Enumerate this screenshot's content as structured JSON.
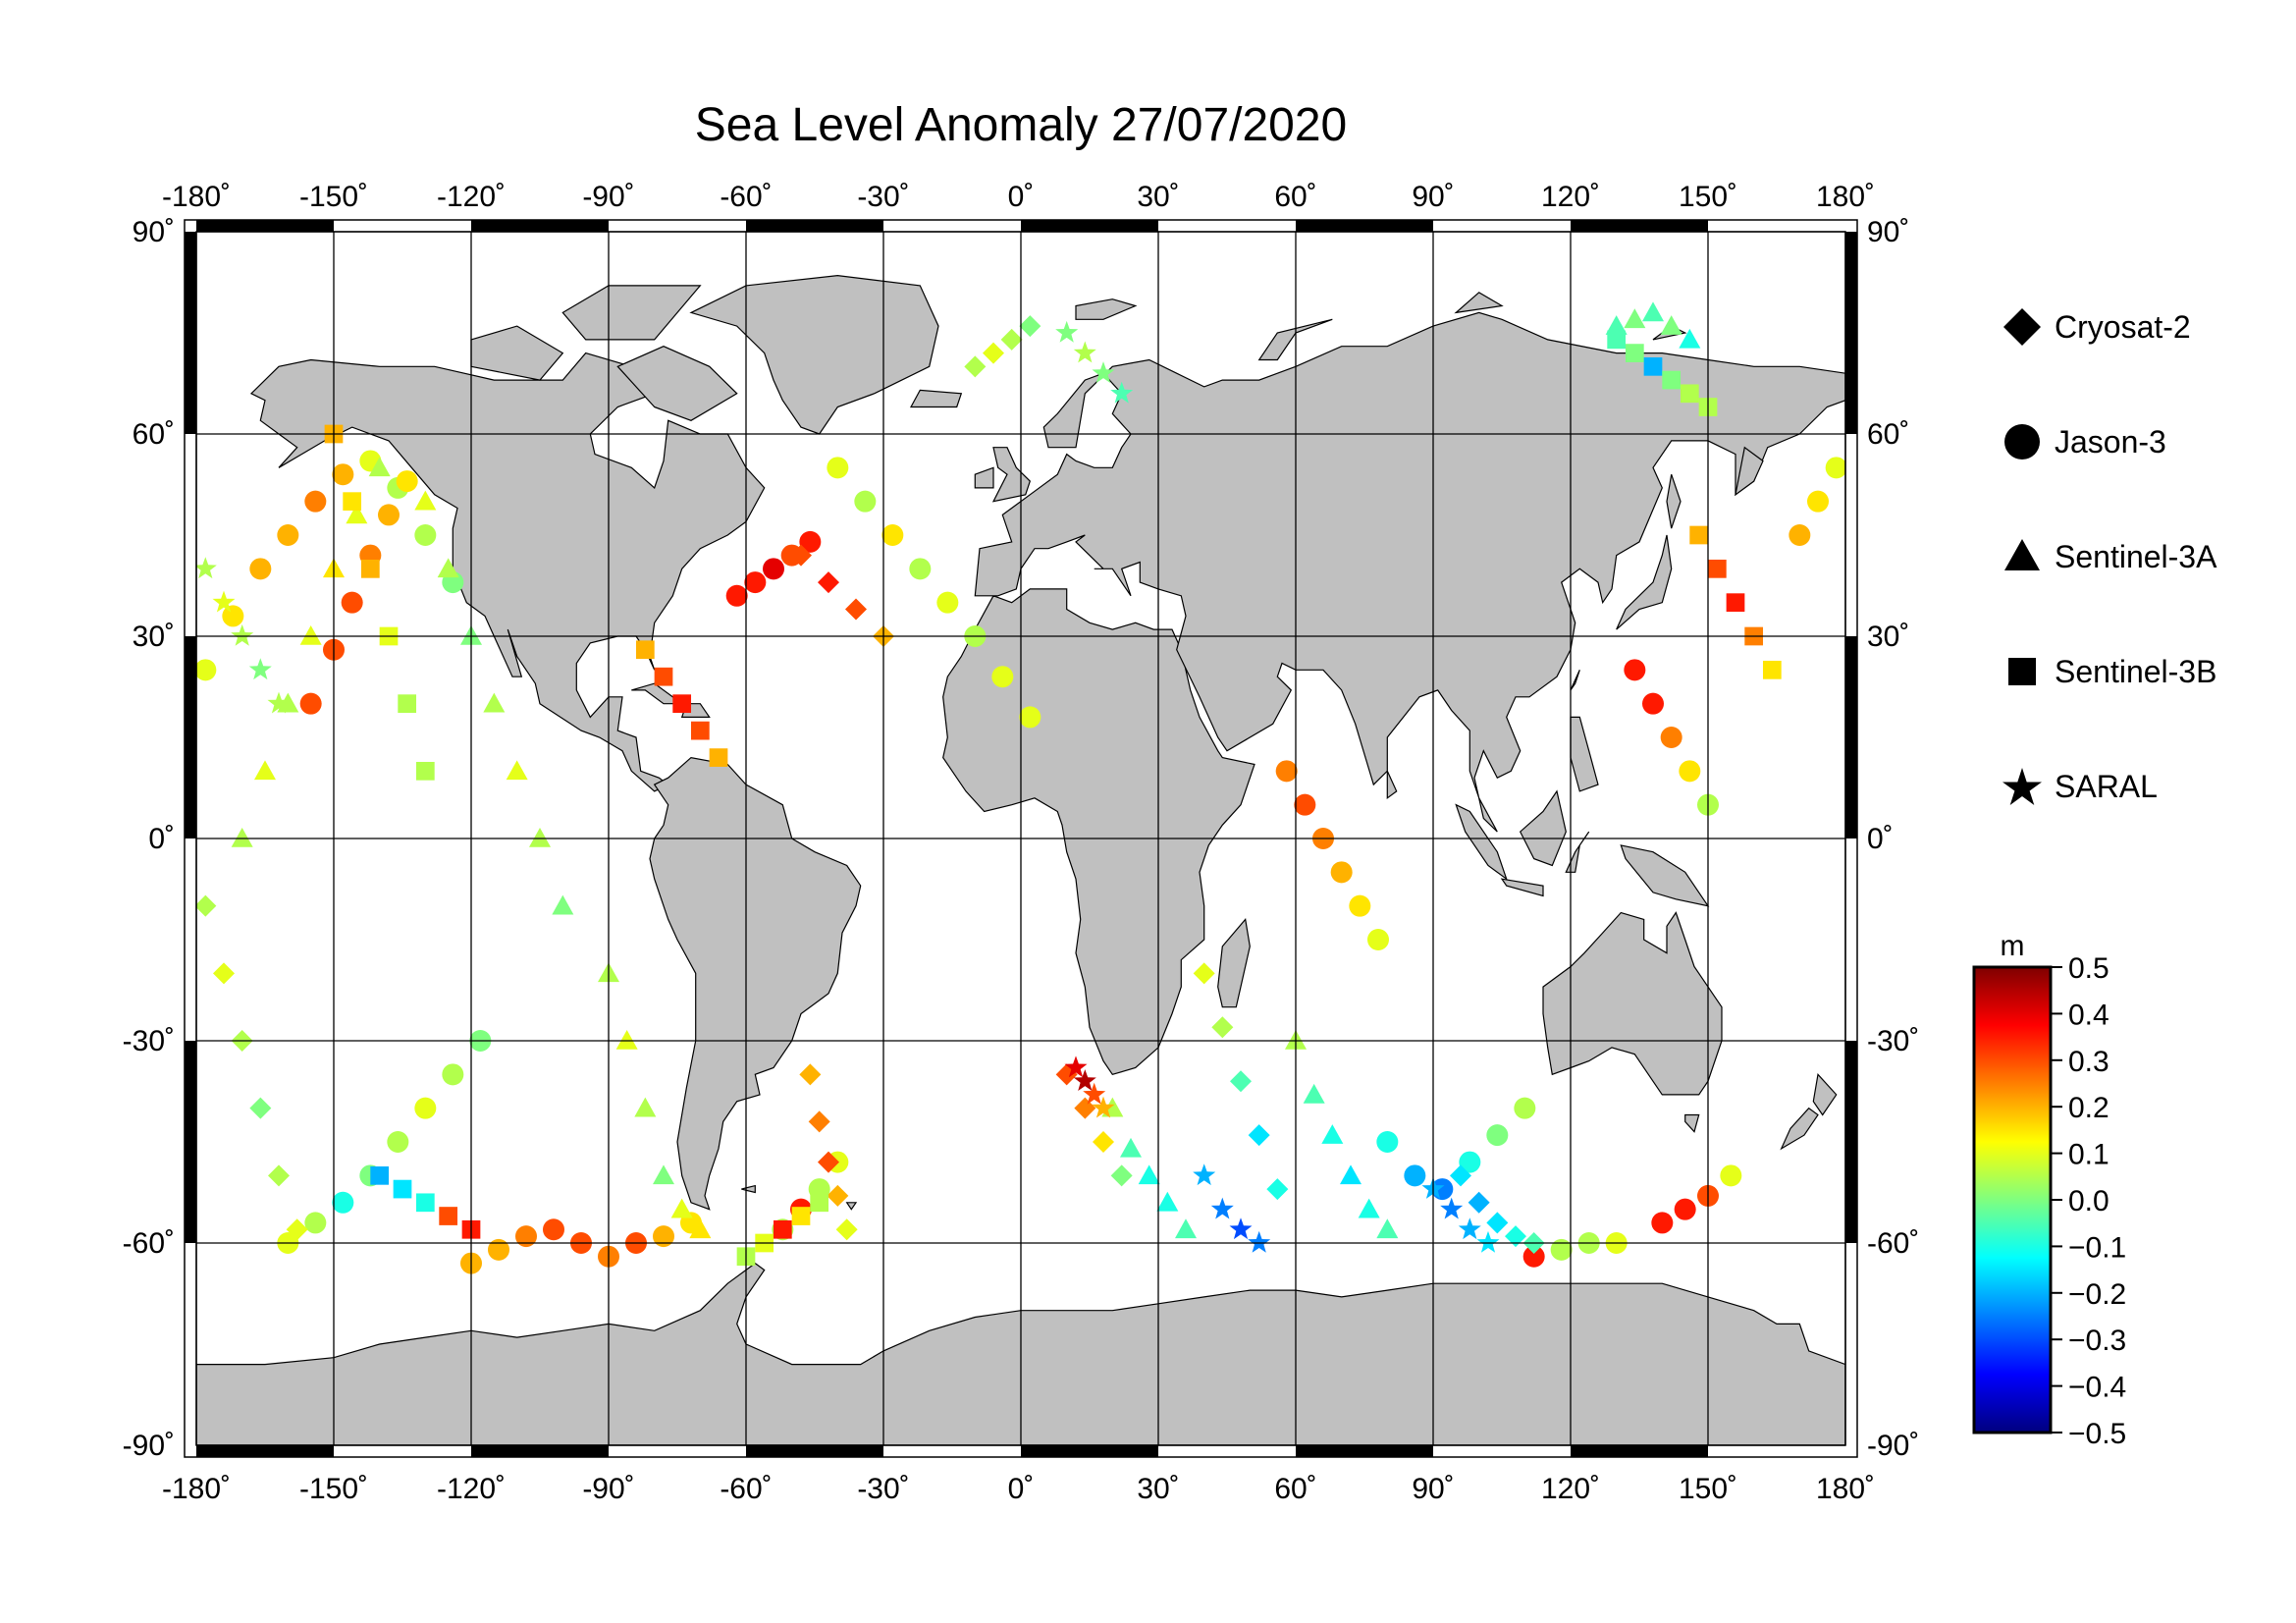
{
  "title": "Sea Level Anomaly 27/07/2020",
  "map": {
    "lon_range": [
      -180,
      180
    ],
    "lat_range": [
      -90,
      90
    ],
    "lon_ticks": [
      "-180˚",
      "-150˚",
      "-120˚",
      "-90˚",
      "-60˚",
      "-30˚",
      "0˚",
      "30˚",
      "60˚",
      "90˚",
      "120˚",
      "150˚",
      "180˚"
    ],
    "lat_ticks_left": [
      "90˚",
      "60˚",
      "30˚",
      "0˚",
      "-30˚",
      "-60˚",
      "-90˚"
    ],
    "lat_ticks_right": [
      "90˚",
      "60˚",
      "30˚",
      "0˚",
      "-30˚",
      "-60˚",
      "-90˚"
    ],
    "grid": true,
    "ocean_color": "#ffffff",
    "land_color": "#c0c0c0"
  },
  "legend": {
    "items": [
      {
        "label": "Cryosat-2",
        "marker": "diamond"
      },
      {
        "label": "Jason-3",
        "marker": "circle"
      },
      {
        "label": "Sentinel-3A",
        "marker": "triangle"
      },
      {
        "label": "Sentinel-3B",
        "marker": "square"
      },
      {
        "label": "SARAL",
        "marker": "star"
      }
    ]
  },
  "colorbar": {
    "unit": "m",
    "range": [
      -0.5,
      0.5
    ],
    "tick_labels": [
      "0.5",
      "0.4",
      "0.3",
      "0.2",
      "0.1",
      "0.0",
      "−0.1",
      "−0.2",
      "−0.3",
      "−0.4",
      "−0.5"
    ],
    "colors": [
      "#00007f",
      "#0000ff",
      "#007fff",
      "#00ffff",
      "#7fff7f",
      "#ffff00",
      "#ff7f00",
      "#ff0000",
      "#7f0000"
    ]
  },
  "chart_data": {
    "type": "scatter",
    "title": "Sea Level Anomaly 27/07/2020",
    "xlabel": "",
    "ylabel": "",
    "xlim": [
      -180,
      180
    ],
    "ylim": [
      -90,
      90
    ],
    "color_scale": {
      "unit": "m",
      "min": -0.5,
      "max": 0.5
    },
    "series": [
      {
        "name": "Jason-3",
        "marker": "circle",
        "tracks": [
          {
            "lon": [
              -178,
              -172,
              -166,
              -160,
              -154,
              -148,
              -142,
              -136,
              -130,
              -124
            ],
            "lat": [
              25,
              33,
              40,
              45,
              50,
              54,
              56,
              52,
              45,
              38
            ],
            "sla": [
              0.1,
              0.15,
              0.2,
              0.2,
              0.25,
              0.2,
              0.1,
              0.05,
              0.05,
              0.0
            ]
          },
          {
            "lon": [
              -155,
              -150,
              -146,
              -142,
              -138,
              -134
            ],
            "lat": [
              20,
              28,
              35,
              42,
              48,
              53
            ],
            "sla": [
              0.3,
              0.3,
              0.3,
              0.25,
              0.2,
              0.15
            ]
          },
          {
            "lon": [
              -160,
              -154,
              -148,
              -142,
              -136,
              -130,
              -124,
              -118
            ],
            "lat": [
              -60,
              -57,
              -54,
              -50,
              -45,
              -40,
              -35,
              -30
            ],
            "sla": [
              0.1,
              0.05,
              -0.1,
              0.0,
              0.05,
              0.1,
              0.05,
              0.0
            ]
          },
          {
            "lon": [
              -120,
              -114,
              -108,
              -102,
              -96,
              -90,
              -84,
              -78,
              -72
            ],
            "lat": [
              -63,
              -61,
              -59,
              -58,
              -60,
              -62,
              -60,
              -59,
              -57
            ],
            "sla": [
              0.2,
              0.2,
              0.25,
              0.3,
              0.3,
              0.25,
              0.3,
              0.2,
              0.15
            ]
          },
          {
            "lon": [
              -52,
              -48,
              -44,
              -40
            ],
            "lat": [
              -58,
              -55,
              -52,
              -48
            ],
            "sla": [
              0.05,
              0.35,
              0.05,
              0.1
            ]
          },
          {
            "lon": [
              -62,
              -58,
              -54,
              -50,
              -46
            ],
            "lat": [
              36,
              38,
              40,
              42,
              44
            ],
            "sla": [
              0.35,
              0.35,
              0.4,
              0.3,
              0.35
            ]
          },
          {
            "lon": [
              -40,
              -34,
              -28,
              -22,
              -16,
              -10,
              -4,
              2
            ],
            "lat": [
              55,
              50,
              45,
              40,
              35,
              30,
              24,
              18
            ],
            "sla": [
              0.1,
              0.05,
              0.15,
              0.05,
              0.1,
              0.05,
              0.1,
              0.1
            ]
          },
          {
            "lon": [
              58,
              62,
              66,
              70,
              74,
              78
            ],
            "lat": [
              10,
              5,
              0,
              -5,
              -10,
              -15
            ],
            "sla": [
              0.25,
              0.3,
              0.25,
              0.2,
              0.15,
              0.1
            ]
          },
          {
            "lon": [
              80,
              86,
              92,
              98,
              104,
              110
            ],
            "lat": [
              -45,
              -50,
              -52,
              -48,
              -44,
              -40
            ],
            "sla": [
              -0.1,
              -0.2,
              -0.25,
              -0.1,
              0.0,
              0.05
            ]
          },
          {
            "lon": [
              134,
              138,
              142,
              146,
              150
            ],
            "lat": [
              25,
              20,
              15,
              10,
              5
            ],
            "sla": [
              0.35,
              0.35,
              0.25,
              0.15,
              0.05
            ]
          },
          {
            "lon": [
              140,
              145,
              150,
              155
            ],
            "lat": [
              -57,
              -55,
              -53,
              -50
            ],
            "sla": [
              0.35,
              0.35,
              0.3,
              0.1
            ]
          },
          {
            "lon": [
              112,
              118,
              124,
              130
            ],
            "lat": [
              -62,
              -61,
              -60,
              -60
            ],
            "sla": [
              0.35,
              0.05,
              0.05,
              0.1
            ]
          },
          {
            "lon": [
              170,
              174,
              178
            ],
            "lat": [
              45,
              50,
              55
            ],
            "sla": [
              0.2,
              0.15,
              0.1
            ]
          }
        ]
      },
      {
        "name": "Cryosat-2",
        "marker": "diamond",
        "tracks": [
          {
            "lon": [
              -178,
              -174,
              -170,
              -166,
              -162,
              -158
            ],
            "lat": [
              -10,
              -20,
              -30,
              -40,
              -50,
              -58
            ],
            "sla": [
              0.05,
              0.1,
              0.05,
              0.0,
              0.05,
              0.1
            ]
          },
          {
            "lon": [
              -46,
              -44,
              -42,
              -40,
              -38
            ],
            "lat": [
              -35,
              -42,
              -48,
              -53,
              -58
            ],
            "sla": [
              0.2,
              0.25,
              0.3,
              0.2,
              0.1
            ]
          },
          {
            "lon": [
              -48,
              -42,
              -36,
              -30
            ],
            "lat": [
              42,
              38,
              34,
              30
            ],
            "sla": [
              0.3,
              0.35,
              0.3,
              0.2
            ]
          },
          {
            "lon": [
              40,
              44,
              48,
              52,
              56
            ],
            "lat": [
              -20,
              -28,
              -36,
              -44,
              -52
            ],
            "sla": [
              0.1,
              0.05,
              -0.05,
              -0.15,
              -0.1
            ]
          },
          {
            "lon": [
              96,
              100,
              104,
              108,
              112
            ],
            "lat": [
              -50,
              -54,
              -57,
              -59,
              -60
            ],
            "sla": [
              -0.15,
              -0.2,
              -0.15,
              -0.1,
              -0.05
            ]
          },
          {
            "lon": [
              10,
              14,
              18,
              22
            ],
            "lat": [
              -35,
              -40,
              -45,
              -50
            ],
            "sla": [
              0.3,
              0.25,
              0.15,
              0.0
            ]
          },
          {
            "lon": [
              -10,
              -6,
              -2,
              2
            ],
            "lat": [
              70,
              72,
              74,
              76
            ],
            "sla": [
              0.05,
              0.1,
              0.05,
              0.0
            ]
          }
        ]
      },
      {
        "name": "Sentinel-3A",
        "marker": "triangle",
        "tracks": [
          {
            "lon": [
              -170,
              -165,
              -160,
              -155,
              -150,
              -145,
              -140
            ],
            "lat": [
              0,
              10,
              20,
              30,
              40,
              48,
              55
            ],
            "sla": [
              0.05,
              0.1,
              0.05,
              0.1,
              0.15,
              0.1,
              0.05
            ]
          },
          {
            "lon": [
              -130,
              -125,
              -120,
              -115,
              -110,
              -105,
              -100
            ],
            "lat": [
              50,
              40,
              30,
              20,
              10,
              0,
              -10
            ],
            "sla": [
              0.1,
              0.05,
              0.0,
              0.05,
              0.1,
              0.05,
              0.0
            ]
          },
          {
            "lon": [
              -90,
              -86,
              -82,
              -78,
              -74,
              -70
            ],
            "lat": [
              -20,
              -30,
              -40,
              -50,
              -55,
              -58
            ],
            "sla": [
              0.05,
              0.1,
              0.05,
              0.0,
              0.1,
              0.15
            ]
          },
          {
            "lon": [
              130,
              134,
              138,
              142,
              146
            ],
            "lat": [
              76,
              77,
              78,
              76,
              74
            ],
            "sla": [
              -0.05,
              0.0,
              -0.05,
              0.0,
              -0.1
            ]
          },
          {
            "lon": [
              60,
              64,
              68,
              72,
              76,
              80
            ],
            "lat": [
              -30,
              -38,
              -44,
              -50,
              -55,
              -58
            ],
            "sla": [
              0.05,
              -0.05,
              -0.1,
              -0.15,
              -0.1,
              -0.05
            ]
          },
          {
            "lon": [
              20,
              24,
              28,
              32,
              36
            ],
            "lat": [
              -40,
              -46,
              -50,
              -54,
              -58
            ],
            "sla": [
              0.05,
              -0.05,
              -0.1,
              -0.1,
              -0.05
            ]
          }
        ]
      },
      {
        "name": "Sentinel-3B",
        "marker": "square",
        "tracks": [
          {
            "lon": [
              -150,
              -146,
              -142,
              -138,
              -134,
              -130
            ],
            "lat": [
              60,
              50,
              40,
              30,
              20,
              10
            ],
            "sla": [
              0.2,
              0.15,
              0.2,
              0.1,
              0.05,
              0.05
            ]
          },
          {
            "lon": [
              -140,
              -135,
              -130,
              -125,
              -120
            ],
            "lat": [
              -50,
              -52,
              -54,
              -56,
              -58
            ],
            "sla": [
              -0.2,
              -0.15,
              -0.1,
              0.3,
              0.35
            ]
          },
          {
            "lon": [
              -82,
              -78,
              -74,
              -70,
              -66
            ],
            "lat": [
              28,
              24,
              20,
              16,
              12
            ],
            "sla": [
              0.2,
              0.3,
              0.35,
              0.3,
              0.2
            ]
          },
          {
            "lon": [
              148,
              152,
              156,
              160,
              164
            ],
            "lat": [
              45,
              40,
              35,
              30,
              25
            ],
            "sla": [
              0.2,
              0.3,
              0.35,
              0.25,
              0.15
            ]
          },
          {
            "lon": [
              130,
              134,
              138,
              142,
              146,
              150
            ],
            "lat": [
              74,
              72,
              70,
              68,
              66,
              64
            ],
            "sla": [
              -0.05,
              0.0,
              -0.2,
              0.0,
              0.05,
              0.05
            ]
          },
          {
            "lon": [
              -60,
              -56,
              -52,
              -48,
              -44
            ],
            "lat": [
              -62,
              -60,
              -58,
              -56,
              -54
            ],
            "sla": [
              0.05,
              0.1,
              0.35,
              0.15,
              0.05
            ]
          }
        ]
      },
      {
        "name": "SARAL",
        "marker": "star",
        "tracks": [
          {
            "lon": [
              -178,
              -174,
              -170,
              -166,
              -162
            ],
            "lat": [
              40,
              35,
              30,
              25,
              20
            ],
            "sla": [
              0.05,
              0.1,
              0.05,
              0.0,
              0.05
            ]
          },
          {
            "lon": [
              12,
              14,
              16,
              18
            ],
            "lat": [
              -34,
              -36,
              -38,
              -40
            ],
            "sla": [
              0.4,
              0.45,
              0.3,
              0.2
            ]
          },
          {
            "lon": [
              40,
              44,
              48,
              52
            ],
            "lat": [
              -50,
              -55,
              -58,
              -60
            ],
            "sla": [
              -0.2,
              -0.25,
              -0.3,
              -0.25
            ]
          },
          {
            "lon": [
              90,
              94,
              98,
              102
            ],
            "lat": [
              -52,
              -55,
              -58,
              -60
            ],
            "sla": [
              -0.2,
              -0.25,
              -0.2,
              -0.15
            ]
          },
          {
            "lon": [
              10,
              14,
              18,
              22
            ],
            "lat": [
              75,
              72,
              69,
              66
            ],
            "sla": [
              0.0,
              0.05,
              0.0,
              -0.05
            ]
          }
        ]
      }
    ]
  }
}
